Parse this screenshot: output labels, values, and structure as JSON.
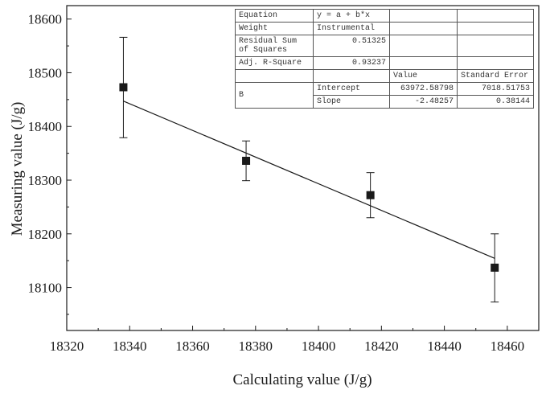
{
  "chart_data": {
    "type": "scatter",
    "xlabel": "Calculating value (J/g)",
    "ylabel": "Measuring value (J/g)",
    "xlim": [
      18320,
      18470
    ],
    "ylim": [
      18020,
      18625
    ],
    "xticks": [
      18320,
      18340,
      18360,
      18380,
      18400,
      18420,
      18440,
      18460
    ],
    "yticks": [
      18100,
      18200,
      18300,
      18400,
      18500,
      18600
    ],
    "grid": false,
    "points": [
      {
        "x": 18338,
        "y": 18473,
        "err_low": 18379,
        "err_high": 18566
      },
      {
        "x": 18377,
        "y": 18336,
        "err_low": 18299,
        "err_high": 18373
      },
      {
        "x": 18416.5,
        "y": 18272,
        "err_low": 18230,
        "err_high": 18314
      },
      {
        "x": 18456,
        "y": 18137,
        "err_low": 18073,
        "err_high": 18200
      }
    ],
    "fit": {
      "intercept": 63972.58798,
      "slope": -2.48257,
      "x_start": 18338,
      "x_end": 18456
    }
  },
  "fit_table": {
    "equation_label": "Equation",
    "equation_value": "y = a + b*x",
    "weight_label": "Weight",
    "weight_value": "Instrumental",
    "rss_label": "Residual Sum of Squares",
    "rss_value": "0.51325",
    "r2_label": "Adj. R-Square",
    "r2_value": "0.93237",
    "value_header": "Value",
    "stderr_header": "Standard Error",
    "param_group": "B",
    "intercept_label": "Intercept",
    "intercept_value": "63972.58798",
    "intercept_err": "7018.51753",
    "slope_label": "Slope",
    "slope_value": "-2.48257",
    "slope_err": "0.38144"
  },
  "colors": {
    "axis": "#1a1a1a",
    "marker": "#1a1a1a",
    "fit_line": "#1a1a1a"
  }
}
